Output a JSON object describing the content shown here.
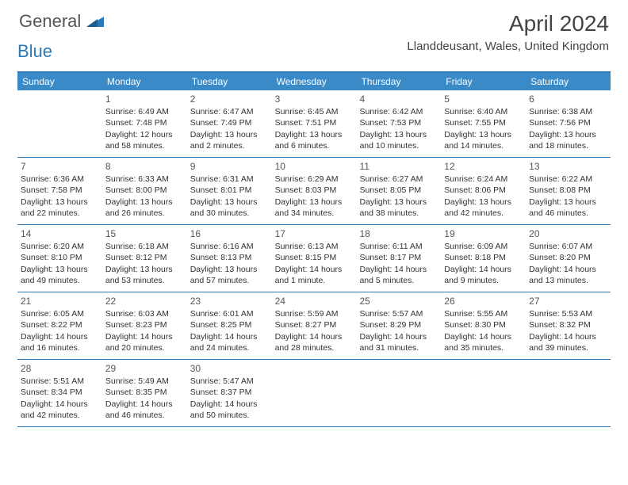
{
  "logo": {
    "general": "General",
    "blue": "Blue"
  },
  "title": "April 2024",
  "location": "Llanddeusant, Wales, United Kingdom",
  "colors": {
    "header_bg": "#3a8ac7",
    "border": "#2a7ab9",
    "text": "#333333"
  },
  "day_headers": [
    "Sunday",
    "Monday",
    "Tuesday",
    "Wednesday",
    "Thursday",
    "Friday",
    "Saturday"
  ],
  "weeks": [
    [
      {
        "num": "",
        "sunrise": "",
        "sunset": "",
        "daylight": ""
      },
      {
        "num": "1",
        "sunrise": "Sunrise: 6:49 AM",
        "sunset": "Sunset: 7:48 PM",
        "daylight": "Daylight: 12 hours and 58 minutes."
      },
      {
        "num": "2",
        "sunrise": "Sunrise: 6:47 AM",
        "sunset": "Sunset: 7:49 PM",
        "daylight": "Daylight: 13 hours and 2 minutes."
      },
      {
        "num": "3",
        "sunrise": "Sunrise: 6:45 AM",
        "sunset": "Sunset: 7:51 PM",
        "daylight": "Daylight: 13 hours and 6 minutes."
      },
      {
        "num": "4",
        "sunrise": "Sunrise: 6:42 AM",
        "sunset": "Sunset: 7:53 PM",
        "daylight": "Daylight: 13 hours and 10 minutes."
      },
      {
        "num": "5",
        "sunrise": "Sunrise: 6:40 AM",
        "sunset": "Sunset: 7:55 PM",
        "daylight": "Daylight: 13 hours and 14 minutes."
      },
      {
        "num": "6",
        "sunrise": "Sunrise: 6:38 AM",
        "sunset": "Sunset: 7:56 PM",
        "daylight": "Daylight: 13 hours and 18 minutes."
      }
    ],
    [
      {
        "num": "7",
        "sunrise": "Sunrise: 6:36 AM",
        "sunset": "Sunset: 7:58 PM",
        "daylight": "Daylight: 13 hours and 22 minutes."
      },
      {
        "num": "8",
        "sunrise": "Sunrise: 6:33 AM",
        "sunset": "Sunset: 8:00 PM",
        "daylight": "Daylight: 13 hours and 26 minutes."
      },
      {
        "num": "9",
        "sunrise": "Sunrise: 6:31 AM",
        "sunset": "Sunset: 8:01 PM",
        "daylight": "Daylight: 13 hours and 30 minutes."
      },
      {
        "num": "10",
        "sunrise": "Sunrise: 6:29 AM",
        "sunset": "Sunset: 8:03 PM",
        "daylight": "Daylight: 13 hours and 34 minutes."
      },
      {
        "num": "11",
        "sunrise": "Sunrise: 6:27 AM",
        "sunset": "Sunset: 8:05 PM",
        "daylight": "Daylight: 13 hours and 38 minutes."
      },
      {
        "num": "12",
        "sunrise": "Sunrise: 6:24 AM",
        "sunset": "Sunset: 8:06 PM",
        "daylight": "Daylight: 13 hours and 42 minutes."
      },
      {
        "num": "13",
        "sunrise": "Sunrise: 6:22 AM",
        "sunset": "Sunset: 8:08 PM",
        "daylight": "Daylight: 13 hours and 46 minutes."
      }
    ],
    [
      {
        "num": "14",
        "sunrise": "Sunrise: 6:20 AM",
        "sunset": "Sunset: 8:10 PM",
        "daylight": "Daylight: 13 hours and 49 minutes."
      },
      {
        "num": "15",
        "sunrise": "Sunrise: 6:18 AM",
        "sunset": "Sunset: 8:12 PM",
        "daylight": "Daylight: 13 hours and 53 minutes."
      },
      {
        "num": "16",
        "sunrise": "Sunrise: 6:16 AM",
        "sunset": "Sunset: 8:13 PM",
        "daylight": "Daylight: 13 hours and 57 minutes."
      },
      {
        "num": "17",
        "sunrise": "Sunrise: 6:13 AM",
        "sunset": "Sunset: 8:15 PM",
        "daylight": "Daylight: 14 hours and 1 minute."
      },
      {
        "num": "18",
        "sunrise": "Sunrise: 6:11 AM",
        "sunset": "Sunset: 8:17 PM",
        "daylight": "Daylight: 14 hours and 5 minutes."
      },
      {
        "num": "19",
        "sunrise": "Sunrise: 6:09 AM",
        "sunset": "Sunset: 8:18 PM",
        "daylight": "Daylight: 14 hours and 9 minutes."
      },
      {
        "num": "20",
        "sunrise": "Sunrise: 6:07 AM",
        "sunset": "Sunset: 8:20 PM",
        "daylight": "Daylight: 14 hours and 13 minutes."
      }
    ],
    [
      {
        "num": "21",
        "sunrise": "Sunrise: 6:05 AM",
        "sunset": "Sunset: 8:22 PM",
        "daylight": "Daylight: 14 hours and 16 minutes."
      },
      {
        "num": "22",
        "sunrise": "Sunrise: 6:03 AM",
        "sunset": "Sunset: 8:23 PM",
        "daylight": "Daylight: 14 hours and 20 minutes."
      },
      {
        "num": "23",
        "sunrise": "Sunrise: 6:01 AM",
        "sunset": "Sunset: 8:25 PM",
        "daylight": "Daylight: 14 hours and 24 minutes."
      },
      {
        "num": "24",
        "sunrise": "Sunrise: 5:59 AM",
        "sunset": "Sunset: 8:27 PM",
        "daylight": "Daylight: 14 hours and 28 minutes."
      },
      {
        "num": "25",
        "sunrise": "Sunrise: 5:57 AM",
        "sunset": "Sunset: 8:29 PM",
        "daylight": "Daylight: 14 hours and 31 minutes."
      },
      {
        "num": "26",
        "sunrise": "Sunrise: 5:55 AM",
        "sunset": "Sunset: 8:30 PM",
        "daylight": "Daylight: 14 hours and 35 minutes."
      },
      {
        "num": "27",
        "sunrise": "Sunrise: 5:53 AM",
        "sunset": "Sunset: 8:32 PM",
        "daylight": "Daylight: 14 hours and 39 minutes."
      }
    ],
    [
      {
        "num": "28",
        "sunrise": "Sunrise: 5:51 AM",
        "sunset": "Sunset: 8:34 PM",
        "daylight": "Daylight: 14 hours and 42 minutes."
      },
      {
        "num": "29",
        "sunrise": "Sunrise: 5:49 AM",
        "sunset": "Sunset: 8:35 PM",
        "daylight": "Daylight: 14 hours and 46 minutes."
      },
      {
        "num": "30",
        "sunrise": "Sunrise: 5:47 AM",
        "sunset": "Sunset: 8:37 PM",
        "daylight": "Daylight: 14 hours and 50 minutes."
      },
      {
        "num": "",
        "sunrise": "",
        "sunset": "",
        "daylight": ""
      },
      {
        "num": "",
        "sunrise": "",
        "sunset": "",
        "daylight": ""
      },
      {
        "num": "",
        "sunrise": "",
        "sunset": "",
        "daylight": ""
      },
      {
        "num": "",
        "sunrise": "",
        "sunset": "",
        "daylight": ""
      }
    ]
  ]
}
